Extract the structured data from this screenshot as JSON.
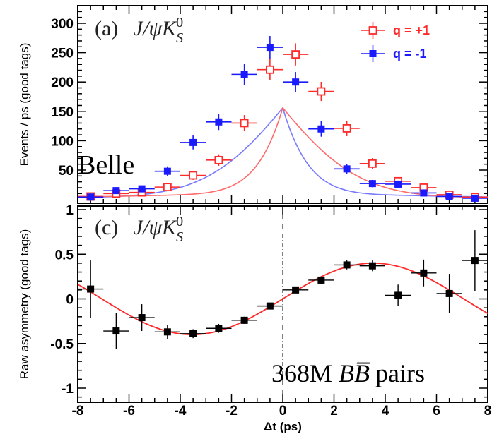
{
  "chart_data": [
    {
      "type": "scatter",
      "panel_label_roman": "(a)",
      "panel_label_italic": "J/ψK",
      "panel_label_sup": "0",
      "panel_label_sub": "S",
      "watermark": "Belle",
      "ylabel": "Events / ps (good tags)",
      "xlim": [
        -8,
        8
      ],
      "ylim": [
        0,
        340
      ],
      "y_ticks": [
        50,
        100,
        150,
        200,
        250,
        300
      ],
      "legend_position": "top-right",
      "series": [
        {
          "name": "q = +1",
          "color": "#ff2a2a",
          "marker": "open-square",
          "x": [
            -7.5,
            -6.5,
            -5.5,
            -4.5,
            -3.5,
            -2.5,
            -1.5,
            -0.5,
            0.5,
            1.5,
            2.5,
            3.5,
            4.5,
            5.5,
            6.5,
            7.5
          ],
          "y": [
            5,
            10,
            12,
            21,
            41,
            67,
            130,
            221,
            247,
            184,
            121,
            61,
            31,
            20,
            8,
            4
          ]
        },
        {
          "name": "q = -1",
          "color": "#1a1aff",
          "marker": "filled-square",
          "x": [
            -7.5,
            -6.5,
            -5.5,
            -4.5,
            -3.5,
            -2.5,
            -1.5,
            -0.5,
            0.5,
            1.5,
            2.5,
            3.5,
            4.5,
            5.5,
            6.5,
            7.5
          ],
          "y": [
            4,
            15,
            18,
            48,
            97,
            132,
            213,
            259,
            200,
            120,
            52,
            27,
            26,
            11,
            5,
            2
          ]
        }
      ]
    },
    {
      "type": "scatter",
      "panel_label_roman": "(c)",
      "panel_label_italic": "J/ψK",
      "panel_label_sup": "0",
      "panel_label_sub": "S",
      "annotation_number": "368M",
      "annotation_symbol": "BB̅",
      "annotation_suffix": "pairs",
      "xlabel": "Δt (ps)",
      "ylabel": "Raw asymmetry (good tags)",
      "xlim": [
        -8,
        8
      ],
      "ylim": [
        -1.1,
        1.1
      ],
      "x_ticks": [
        -8,
        -6,
        -4,
        -2,
        0,
        2,
        4,
        6,
        8
      ],
      "y_ticks": [
        -1,
        -0.5,
        0,
        0.5,
        1
      ],
      "series": [
        {
          "name": "",
          "color": "#000000",
          "marker": "filled-square",
          "x": [
            -7.5,
            -6.5,
            -5.5,
            -4.5,
            -3.5,
            -2.5,
            -1.5,
            -0.5,
            0.5,
            1.5,
            2.5,
            3.5,
            4.5,
            5.5,
            6.5,
            7.5
          ],
          "y": [
            0.11,
            -0.36,
            -0.21,
            -0.37,
            -0.39,
            -0.33,
            -0.24,
            -0.08,
            0.1,
            0.21,
            0.38,
            0.37,
            0.04,
            0.29,
            0.06,
            0.43
          ],
          "yerr": [
            0.32,
            0.2,
            0.15,
            0.08,
            0.05,
            0.05,
            0.04,
            0.03,
            0.03,
            0.04,
            0.05,
            0.06,
            0.12,
            0.15,
            0.22,
            0.34
          ]
        }
      ]
    }
  ]
}
